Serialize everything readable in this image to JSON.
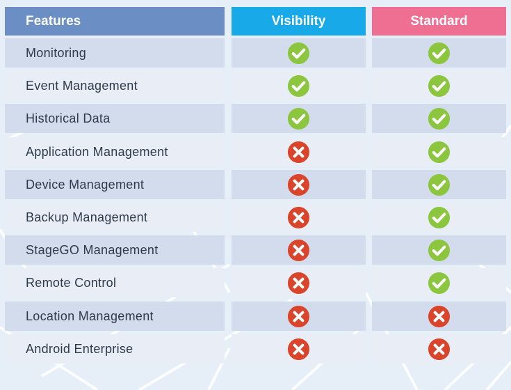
{
  "colors": {
    "header_features": "#6b8fc4",
    "header_visibility": "#17a9e8",
    "header_standard": "#ee6f92",
    "row_dark": "#d3dcec",
    "row_light": "#e9eef6",
    "check_green": "#8cc63f",
    "cross_red": "#d9442b"
  },
  "headers": {
    "features": "Features",
    "visibility": "Visibility",
    "standard": "Standard"
  },
  "rows": [
    {
      "feature": "Monitoring",
      "visibility": "check-icon",
      "standard": "check-icon"
    },
    {
      "feature": "Event Management",
      "visibility": "check-icon",
      "standard": "check-icon"
    },
    {
      "feature": "Historical Data",
      "visibility": "check-icon",
      "standard": "check-icon"
    },
    {
      "feature": "Application Management",
      "visibility": "cross-icon",
      "standard": "check-icon"
    },
    {
      "feature": "Device Management",
      "visibility": "cross-icon",
      "standard": "check-icon"
    },
    {
      "feature": "Backup Management",
      "visibility": "cross-icon",
      "standard": "check-icon"
    },
    {
      "feature": "StageGO Management",
      "visibility": "cross-icon",
      "standard": "check-icon"
    },
    {
      "feature": "Remote Control",
      "visibility": "cross-icon",
      "standard": "check-icon"
    },
    {
      "feature": "Location Management",
      "visibility": "cross-icon",
      "standard": "cross-icon"
    },
    {
      "feature": "Android Enterprise",
      "visibility": "cross-icon",
      "standard": "cross-icon"
    }
  ]
}
